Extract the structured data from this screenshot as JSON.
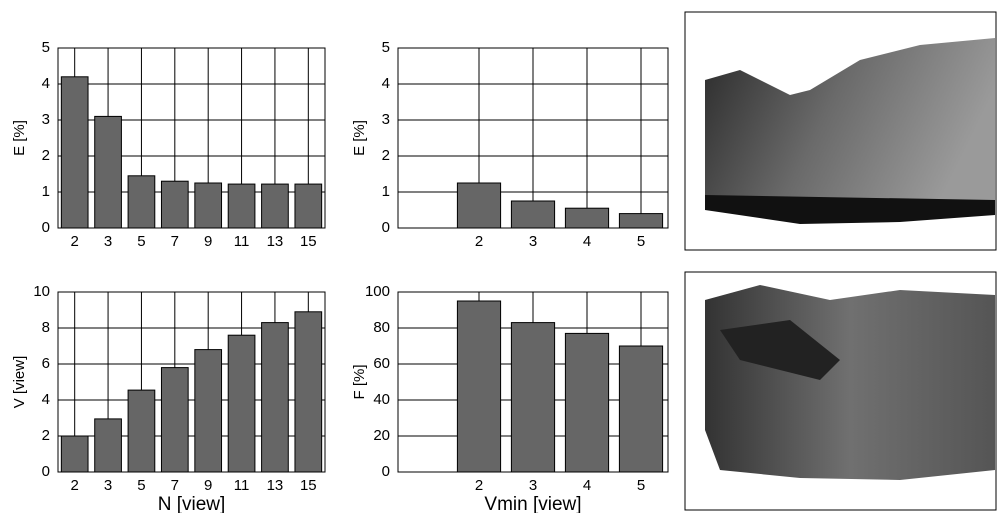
{
  "chart_data": [
    {
      "type": "bar",
      "ylabel": "E [%]",
      "categories": [
        "2",
        "3",
        "5",
        "7",
        "9",
        "11",
        "13",
        "15"
      ],
      "values": [
        4.2,
        3.1,
        1.45,
        1.3,
        1.25,
        1.22,
        1.22,
        1.22
      ],
      "color": "#666666",
      "ylim": [
        0,
        5
      ],
      "yticks": [
        0,
        1,
        2,
        3,
        4,
        5
      ],
      "grid": true
    },
    {
      "type": "bar",
      "ylabel": "E [%]",
      "categories": [
        "2",
        "3",
        "4",
        "5"
      ],
      "values": [
        1.25,
        0.75,
        0.55,
        0.4
      ],
      "color": "#666666",
      "ylim": [
        0,
        5
      ],
      "yticks": [
        0,
        1,
        2,
        3,
        4,
        5
      ],
      "grid": true
    },
    {
      "type": "bar",
      "ylabel": "V [view]",
      "xlabel": "N [view]",
      "categories": [
        "2",
        "3",
        "5",
        "7",
        "9",
        "11",
        "13",
        "15"
      ],
      "values": [
        2.0,
        2.95,
        4.55,
        5.8,
        6.8,
        7.6,
        8.3,
        8.9
      ],
      "color": "#666666",
      "ylim": [
        0,
        10
      ],
      "yticks": [
        0,
        2,
        4,
        6,
        8,
        10
      ],
      "grid": true
    },
    {
      "type": "bar",
      "ylabel": "F [%]",
      "xlabel": "Vmin [view]",
      "categories": [
        "2",
        "3",
        "4",
        "5"
      ],
      "values": [
        95,
        83,
        77,
        70
      ],
      "color": "#666666",
      "ylim": [
        0,
        100
      ],
      "yticks": [
        0,
        20,
        40,
        60,
        80,
        100
      ],
      "grid": true
    }
  ]
}
